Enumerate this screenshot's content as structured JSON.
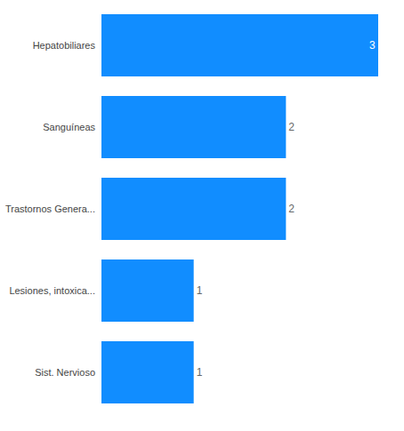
{
  "chart_data": {
    "type": "bar",
    "orientation": "horizontal",
    "categories": [
      "Hepatobiliares",
      "Sanguíneas",
      "Trastornos Genera...",
      "Lesiones, intoxica...",
      "Sist. Nervioso"
    ],
    "values": [
      3,
      2,
      2,
      1,
      1
    ],
    "color": "#118dff",
    "xlim": [
      0,
      3
    ],
    "grid": false,
    "data_labels": true,
    "tick_labels": "y"
  }
}
